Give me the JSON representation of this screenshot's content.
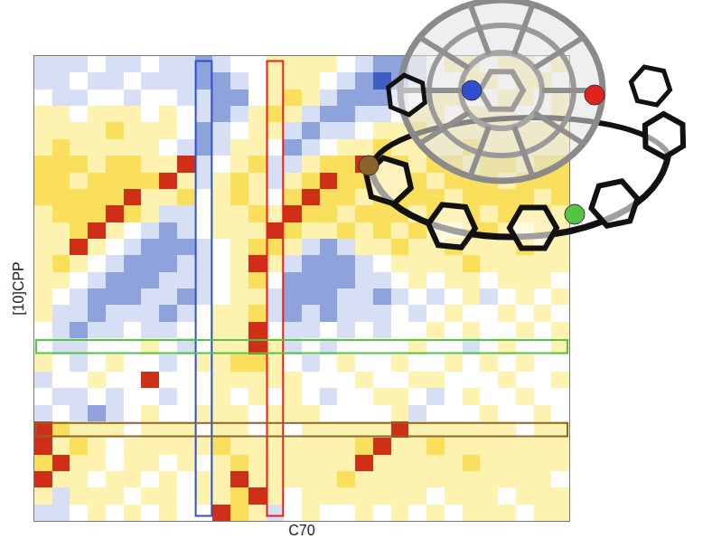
{
  "chart_data": {
    "type": "heatmap",
    "xlabel": "C70",
    "ylabel": "[10]CPP",
    "tick_labels": false,
    "zlim": [
      -3,
      3
    ],
    "z": [
      [
        -1,
        -1,
        -1,
        0,
        -1,
        -1,
        0,
        -1,
        -1,
        -2,
        -1,
        0,
        0,
        1,
        1,
        1,
        1,
        0,
        -1,
        -2,
        -2,
        -1,
        0,
        1,
        1,
        0,
        1,
        1,
        0,
        1
      ],
      [
        -1,
        -1,
        0,
        -1,
        -1,
        0,
        -1,
        -1,
        -1,
        -2,
        -2,
        -1,
        0,
        1,
        1,
        1,
        0,
        -1,
        -2,
        -3,
        -2,
        -1,
        0,
        0,
        1,
        1,
        0,
        1,
        1,
        0
      ],
      [
        0,
        -1,
        -1,
        0,
        0,
        -1,
        0,
        0,
        -1,
        -1,
        -2,
        -2,
        0,
        1,
        2,
        1,
        -1,
        -2,
        -2,
        -2,
        -1,
        0,
        1,
        1,
        0,
        0,
        1,
        1,
        0,
        1
      ],
      [
        1,
        1,
        0,
        1,
        1,
        1,
        0,
        1,
        0,
        -1,
        -2,
        -1,
        1,
        2,
        1,
        -1,
        -2,
        -2,
        -1,
        -1,
        0,
        1,
        1,
        0,
        1,
        1,
        1,
        0,
        0,
        1
      ],
      [
        1,
        1,
        1,
        1,
        2,
        1,
        1,
        1,
        0,
        -2,
        -1,
        0,
        1,
        1,
        -1,
        -2,
        -1,
        -1,
        0,
        1,
        1,
        2,
        1,
        1,
        1,
        1,
        1,
        1,
        1,
        1
      ],
      [
        1,
        2,
        1,
        1,
        1,
        1,
        1,
        0,
        -1,
        -2,
        -1,
        1,
        1,
        0,
        -2,
        -1,
        0,
        1,
        1,
        2,
        1,
        1,
        1,
        1,
        2,
        1,
        1,
        1,
        1,
        1
      ],
      [
        2,
        2,
        2,
        1,
        2,
        2,
        1,
        1,
        3,
        -1,
        0,
        1,
        2,
        -1,
        -1,
        1,
        2,
        2,
        3,
        2,
        2,
        1,
        2,
        2,
        1,
        2,
        2,
        1,
        2,
        2
      ],
      [
        2,
        2,
        1,
        2,
        2,
        2,
        2,
        3,
        1,
        -1,
        1,
        2,
        1,
        -1,
        1,
        2,
        3,
        2,
        2,
        2,
        2,
        2,
        1,
        2,
        2,
        2,
        1,
        2,
        2,
        2
      ],
      [
        2,
        2,
        2,
        2,
        2,
        3,
        1,
        1,
        2,
        0,
        1,
        2,
        1,
        0,
        2,
        3,
        2,
        2,
        1,
        2,
        2,
        2,
        2,
        1,
        2,
        2,
        2,
        2,
        1,
        2
      ],
      [
        1,
        2,
        2,
        2,
        3,
        2,
        1,
        -1,
        -1,
        0,
        1,
        1,
        2,
        1,
        3,
        2,
        2,
        1,
        2,
        2,
        2,
        1,
        2,
        2,
        2,
        1,
        2,
        2,
        2,
        1
      ],
      [
        1,
        1,
        2,
        3,
        1,
        0,
        -1,
        -2,
        -1,
        0,
        1,
        1,
        1,
        3,
        2,
        1,
        1,
        2,
        1,
        2,
        1,
        2,
        1,
        1,
        2,
        2,
        1,
        1,
        2,
        1
      ],
      [
        1,
        1,
        3,
        1,
        0,
        -1,
        -2,
        -2,
        -2,
        -1,
        0,
        1,
        2,
        2,
        1,
        -1,
        -2,
        -1,
        1,
        1,
        2,
        1,
        1,
        2,
        1,
        1,
        1,
        2,
        1,
        1
      ],
      [
        1,
        2,
        1,
        0,
        -1,
        -2,
        -2,
        -2,
        -1,
        -1,
        0,
        1,
        3,
        1,
        -1,
        -2,
        -2,
        -2,
        -1,
        0,
        1,
        1,
        1,
        1,
        2,
        1,
        1,
        1,
        1,
        1
      ],
      [
        1,
        1,
        0,
        -1,
        -2,
        -2,
        -2,
        -1,
        -1,
        -1,
        0,
        1,
        2,
        0,
        -2,
        -2,
        -2,
        -2,
        -1,
        -1,
        0,
        1,
        0,
        1,
        1,
        0,
        1,
        1,
        1,
        0
      ],
      [
        1,
        0,
        -1,
        -2,
        -2,
        -2,
        -1,
        -1,
        -2,
        -1,
        0,
        1,
        1,
        -1,
        -2,
        -2,
        -2,
        -1,
        -1,
        -2,
        -1,
        0,
        -1,
        0,
        1,
        -1,
        0,
        1,
        0,
        1
      ],
      [
        1,
        -1,
        -1,
        -2,
        -1,
        -1,
        -1,
        -2,
        -1,
        0,
        1,
        1,
        2,
        -1,
        -2,
        -1,
        -2,
        -1,
        -1,
        -1,
        0,
        -1,
        0,
        1,
        0,
        0,
        1,
        0,
        1,
        0
      ],
      [
        0,
        -1,
        -2,
        -1,
        -1,
        0,
        -1,
        -1,
        0,
        0,
        1,
        1,
        3,
        0,
        -1,
        -1,
        0,
        -1,
        0,
        -1,
        0,
        0,
        1,
        0,
        1,
        0,
        0,
        1,
        0,
        1
      ],
      [
        0,
        -1,
        -1,
        0,
        0,
        0,
        1,
        0,
        -1,
        0,
        1,
        1,
        3,
        1,
        -1,
        0,
        -1,
        0,
        0,
        0,
        0,
        1,
        0,
        0,
        -1,
        0,
        1,
        0,
        0,
        1
      ],
      [
        1,
        0,
        -1,
        0,
        1,
        0,
        0,
        -1,
        0,
        1,
        1,
        2,
        2,
        1,
        0,
        -1,
        0,
        1,
        0,
        0,
        1,
        0,
        0,
        1,
        0,
        1,
        0,
        1,
        0,
        0
      ],
      [
        -1,
        0,
        0,
        1,
        0,
        0,
        3,
        0,
        0,
        0,
        1,
        1,
        1,
        1,
        1,
        0,
        0,
        0,
        1,
        0,
        0,
        1,
        1,
        0,
        0,
        0,
        1,
        0,
        0,
        1
      ],
      [
        0,
        -1,
        -1,
        0,
        -1,
        0,
        0,
        -1,
        0,
        0,
        1,
        0,
        1,
        0,
        1,
        0,
        -1,
        0,
        0,
        1,
        1,
        0,
        -1,
        0,
        1,
        0,
        0,
        1,
        0,
        0
      ],
      [
        -1,
        0,
        -1,
        -2,
        -1,
        0,
        1,
        0,
        0,
        1,
        1,
        1,
        0,
        1,
        1,
        1,
        0,
        0,
        0,
        0,
        1,
        -1,
        0,
        0,
        0,
        1,
        0,
        0,
        1,
        0
      ],
      [
        3,
        2,
        1,
        1,
        1,
        0,
        1,
        1,
        1,
        0,
        1,
        1,
        0,
        1,
        0,
        1,
        1,
        1,
        1,
        1,
        3,
        1,
        1,
        1,
        1,
        1,
        1,
        0,
        1,
        1
      ],
      [
        3,
        1,
        2,
        1,
        0,
        1,
        1,
        1,
        1,
        1,
        2,
        1,
        1,
        1,
        1,
        1,
        1,
        1,
        2,
        3,
        1,
        1,
        2,
        1,
        1,
        1,
        1,
        1,
        1,
        1
      ],
      [
        2,
        3,
        1,
        1,
        0,
        1,
        1,
        0,
        1,
        0,
        1,
        2,
        1,
        1,
        1,
        1,
        1,
        1,
        3,
        1,
        1,
        1,
        1,
        1,
        2,
        1,
        1,
        1,
        1,
        1
      ],
      [
        3,
        1,
        1,
        0,
        1,
        1,
        0,
        1,
        0,
        1,
        1,
        3,
        1,
        1,
        1,
        1,
        1,
        2,
        1,
        1,
        1,
        1,
        1,
        1,
        1,
        1,
        1,
        1,
        1,
        0
      ],
      [
        1,
        -1,
        1,
        1,
        1,
        0,
        1,
        1,
        0,
        1,
        1,
        2,
        3,
        1,
        0,
        1,
        1,
        1,
        1,
        1,
        1,
        1,
        0,
        1,
        1,
        1,
        0,
        1,
        1,
        1
      ],
      [
        -1,
        -1,
        0,
        1,
        0,
        1,
        0,
        1,
        0,
        0,
        3,
        2,
        1,
        -1,
        0,
        1,
        0,
        0,
        1,
        0,
        1,
        0,
        1,
        0,
        1,
        1,
        1,
        0,
        1,
        1
      ]
    ],
    "highlights": [
      {
        "orientation": "column",
        "index": 9,
        "color": "#2f4fd0"
      },
      {
        "orientation": "column",
        "index": 13,
        "color": "#e0231d"
      },
      {
        "orientation": "row",
        "index": 17,
        "color": "#55c443"
      },
      {
        "orientation": "row",
        "index": 22,
        "color": "#8a6428"
      }
    ]
  }
}
